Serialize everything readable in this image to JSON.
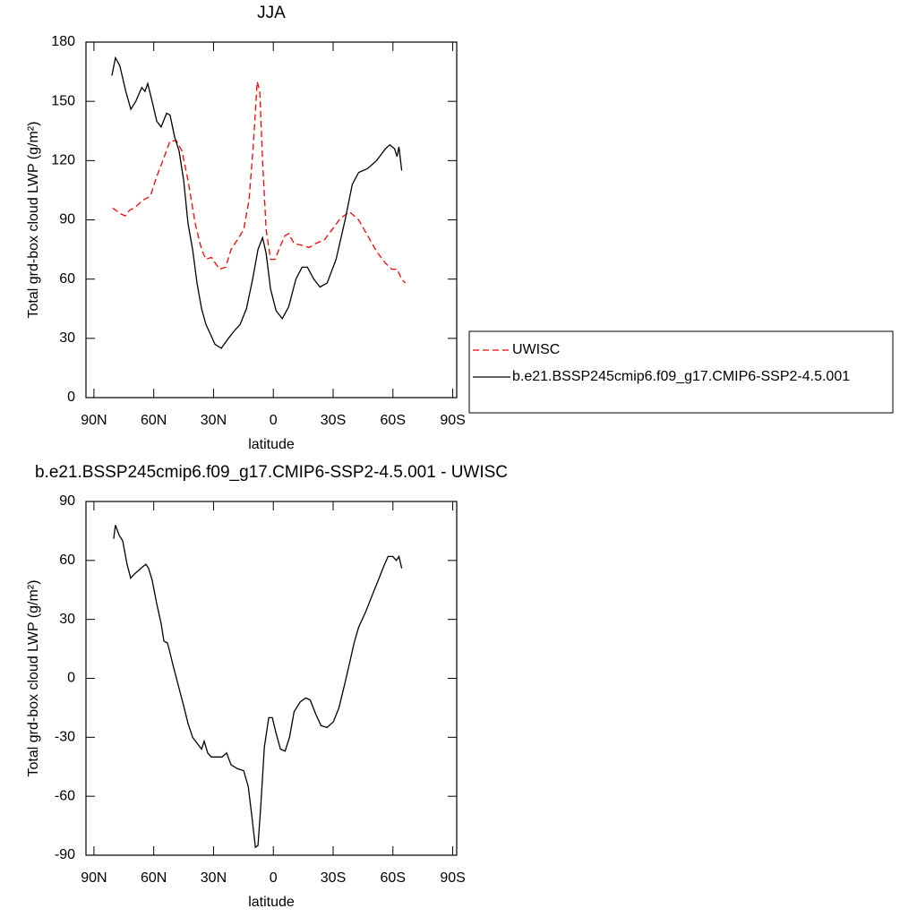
{
  "chart_data": [
    {
      "type": "line",
      "title": "JJA",
      "x_label": "latitude",
      "y_label": "Total grd-box cloud LWP (g/m²)",
      "xlim": [
        94,
        -92
      ],
      "ylim": [
        0,
        180
      ],
      "xticks": [
        {
          "value": 90,
          "label": "90N"
        },
        {
          "value": 60,
          "label": "60N"
        },
        {
          "value": 30,
          "label": "30N"
        },
        0,
        {
          "value": -30,
          "label": "30S"
        },
        {
          "value": -60,
          "label": "60S"
        },
        {
          "value": -90,
          "label": "90S"
        }
      ],
      "yticks": [
        0,
        30,
        60,
        90,
        120,
        150,
        180
      ],
      "legend": "right",
      "series": [
        {
          "name": "UWISC",
          "color": "#ff0000",
          "line_style": "dashed",
          "x": [
            80.6,
            76.5,
            74.3,
            72,
            69.8,
            65.3,
            61.7,
            58.5,
            55.4,
            51.8,
            48.6,
            45.9,
            42.8,
            39.2,
            36,
            33.8,
            31.1,
            27,
            23.9,
            21.2,
            18,
            14.9,
            12.2,
            9.9,
            8.1,
            6.8,
            5.4,
            3.6,
            1.4,
            -0.9,
            -3.2,
            -5.9,
            -7.7,
            -10.4,
            -14.9,
            -18,
            -21.2,
            -25.7,
            -30.2,
            -33.8,
            -38.3,
            -42.8,
            -47.3,
            -51.8,
            -56.3,
            -59.4,
            -62.1,
            -64.4,
            -66.2
          ],
          "values": [
            96,
            93,
            92,
            95,
            96,
            100,
            102,
            112,
            120,
            130,
            130,
            125,
            110,
            88,
            75,
            70,
            71,
            65,
            66,
            75,
            80,
            85,
            100,
            130,
            160,
            155,
            120,
            85,
            70,
            70,
            76,
            82,
            83,
            78,
            77,
            76,
            78,
            80,
            86,
            91,
            94,
            90,
            82,
            74,
            68,
            65,
            65,
            60,
            58
          ]
        },
        {
          "name": "b.e21.BSSP245cmip6.f09_g17.CMIP6-SSP2-4.5.001",
          "color": "#000000",
          "line_style": "solid",
          "x": [
            81,
            79.2,
            77,
            74,
            71.5,
            69,
            66,
            64.4,
            63,
            60.8,
            58.5,
            56.3,
            53.5,
            51.8,
            49.5,
            47.3,
            45,
            42.8,
            40.5,
            38.3,
            36,
            33.8,
            31.5,
            29.3,
            26.1,
            22.5,
            19.4,
            16.7,
            13.5,
            10.4,
            7.7,
            5.4,
            3.6,
            1.4,
            -1.4,
            -4.5,
            -7.7,
            -11.3,
            -14.4,
            -17.1,
            -20.3,
            -23.4,
            -27,
            -31.5,
            -36,
            -39.6,
            -42.8,
            -47.3,
            -51.8,
            -56.3,
            -58.5,
            -60.8,
            -62.1,
            -63,
            -64.4
          ],
          "values": [
            163,
            172,
            168,
            155,
            146,
            150,
            157,
            155,
            159,
            150,
            140,
            137,
            144,
            143,
            132,
            125,
            110,
            88,
            75,
            58,
            45,
            37,
            32,
            27,
            25,
            30,
            34,
            37,
            45,
            60,
            75,
            81,
            73,
            55,
            44,
            40,
            46,
            60,
            66,
            66,
            60,
            56,
            58,
            70,
            90,
            108,
            114,
            116,
            120,
            126,
            128,
            126,
            122,
            127,
            115
          ]
        }
      ]
    },
    {
      "type": "line",
      "title": "b.e21.BSSP245cmip6.f09_g17.CMIP6-SSP2-4.5.001 - UWISC",
      "x_label": "latitude",
      "y_label": "Total grd-box cloud LWP (g/m²)",
      "xlim": [
        94,
        -92
      ],
      "ylim": [
        -90,
        90
      ],
      "xticks": [
        {
          "value": 90,
          "label": "90N"
        },
        {
          "value": 60,
          "label": "60N"
        },
        {
          "value": 30,
          "label": "30N"
        },
        0,
        {
          "value": -30,
          "label": "30S"
        },
        {
          "value": -60,
          "label": "60S"
        },
        {
          "value": -90,
          "label": "90S"
        }
      ],
      "yticks": [
        -90,
        -60,
        -30,
        0,
        30,
        60,
        90
      ],
      "series": [
        {
          "color": "#000000",
          "line_style": "solid",
          "x": [
            80.1,
            79.2,
            77.4,
            75.6,
            73.4,
            71.6,
            69.8,
            67.5,
            65.3,
            63.9,
            62.6,
            60.8,
            58.5,
            56.3,
            54.9,
            53.1,
            51.8,
            50.4,
            49.1,
            47.3,
            45,
            42.8,
            40.5,
            38.3,
            36,
            34.7,
            32.9,
            31.1,
            28.4,
            25.7,
            23.4,
            21.2,
            18,
            14.9,
            12.6,
            10.8,
            9,
            7.7,
            6.3,
            4.5,
            2.3,
            0.5,
            -1.4,
            -3.6,
            -5.9,
            -8.1,
            -10.4,
            -13.5,
            -16.2,
            -18.5,
            -21.2,
            -23.9,
            -27,
            -30.2,
            -32.9,
            -36,
            -38.3,
            -40.5,
            -42.8,
            -46.4,
            -49.5,
            -52.7,
            -55.4,
            -57.6,
            -59.9,
            -61.7,
            -63,
            -64.4
          ],
          "values": [
            71,
            78,
            73,
            70,
            58,
            51,
            53,
            55,
            57,
            58,
            56,
            50,
            38,
            28,
            19,
            18,
            13,
            7,
            2,
            -5,
            -14,
            -23,
            -30,
            -33,
            -36,
            -32,
            -38,
            -40,
            -40,
            -40,
            -38,
            -44,
            -46,
            -47,
            -55,
            -70,
            -86,
            -85,
            -65,
            -35,
            -20,
            -20,
            -28,
            -36,
            -37,
            -30,
            -17,
            -12,
            -10,
            -11,
            -18,
            -24,
            -25,
            -22,
            -15,
            -2,
            8,
            18,
            26,
            34,
            42,
            50,
            57,
            62,
            62,
            60,
            62,
            56
          ]
        }
      ]
    }
  ]
}
